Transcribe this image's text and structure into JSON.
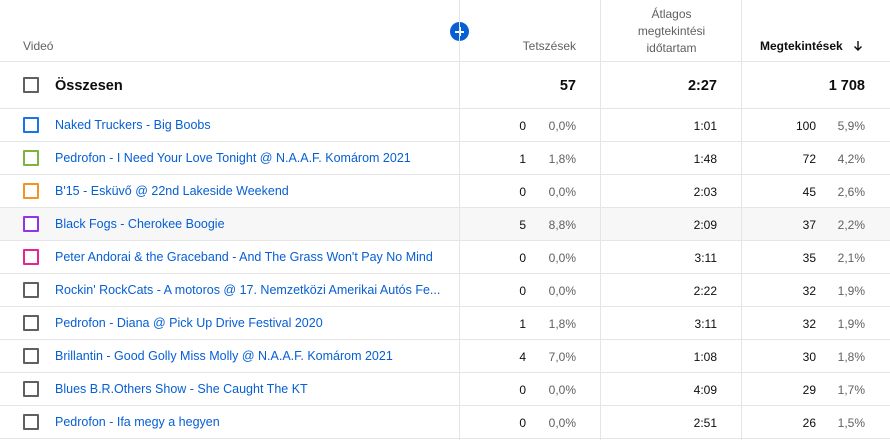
{
  "header": {
    "video": "Videó",
    "likes": "Tetszések",
    "avg_view_duration": [
      "Átlagos",
      "megtekintési",
      "időtartam"
    ],
    "views": "Megtekintések"
  },
  "total": {
    "label": "Összesen",
    "likes": "57",
    "avg_duration": "2:27",
    "views": "1 708"
  },
  "rows": [
    {
      "title": "Naked Truckers - Big Boobs",
      "color": "#1a73e8",
      "likes": "0",
      "likes_pct": "0,0%",
      "duration": "1:01",
      "views": "100",
      "views_pct": "5,9%"
    },
    {
      "title": "Pedrofon - I Need Your Love Tonight @ N.A.A.F. Komárom 2021",
      "color": "#7cb342",
      "likes": "1",
      "likes_pct": "1,8%",
      "duration": "1:48",
      "views": "72",
      "views_pct": "4,2%"
    },
    {
      "title": "B'15 - Esküvő @ 22nd Lakeside Weekend",
      "color": "#f29423",
      "likes": "0",
      "likes_pct": "0,0%",
      "duration": "2:03",
      "views": "45",
      "views_pct": "2,6%"
    },
    {
      "title": "Black Fogs - Cherokee Boogie",
      "color": "#9334e6",
      "likes": "5",
      "likes_pct": "8,8%",
      "duration": "2:09",
      "views": "37",
      "views_pct": "2,2%"
    },
    {
      "title": "Peter Andorai & the Graceband - And The Grass Won't Pay No Mind",
      "color": "#e52592",
      "likes": "0",
      "likes_pct": "0,0%",
      "duration": "3:11",
      "views": "35",
      "views_pct": "2,1%"
    },
    {
      "title": "Rockin' RockCats - A motoros @ 17. Nemzetközi Amerikai Autós Fe...",
      "color": "#606060",
      "likes": "0",
      "likes_pct": "0,0%",
      "duration": "2:22",
      "views": "32",
      "views_pct": "1,9%"
    },
    {
      "title": "Pedrofon - Diana @ Pick Up Drive Festival 2020",
      "color": "#606060",
      "likes": "1",
      "likes_pct": "1,8%",
      "duration": "3:11",
      "views": "32",
      "views_pct": "1,9%"
    },
    {
      "title": "Brillantin - Good Golly Miss Molly @ N.A.A.F. Komárom 2021",
      "color": "#606060",
      "likes": "4",
      "likes_pct": "7,0%",
      "duration": "1:08",
      "views": "30",
      "views_pct": "1,8%"
    },
    {
      "title": "Blues B.R.Others Show - She Caught The KT",
      "color": "#606060",
      "likes": "0",
      "likes_pct": "0,0%",
      "duration": "4:09",
      "views": "29",
      "views_pct": "1,7%"
    },
    {
      "title": "Pedrofon - Ifa megy a hegyen",
      "color": "#606060",
      "likes": "0",
      "likes_pct": "0,0%",
      "duration": "2:51",
      "views": "26",
      "views_pct": "1,5%"
    }
  ],
  "icons": {
    "add_metric": "plus-circle-icon",
    "sort": "arrow-down-icon"
  },
  "colors": {
    "accent": "#065fd4"
  }
}
